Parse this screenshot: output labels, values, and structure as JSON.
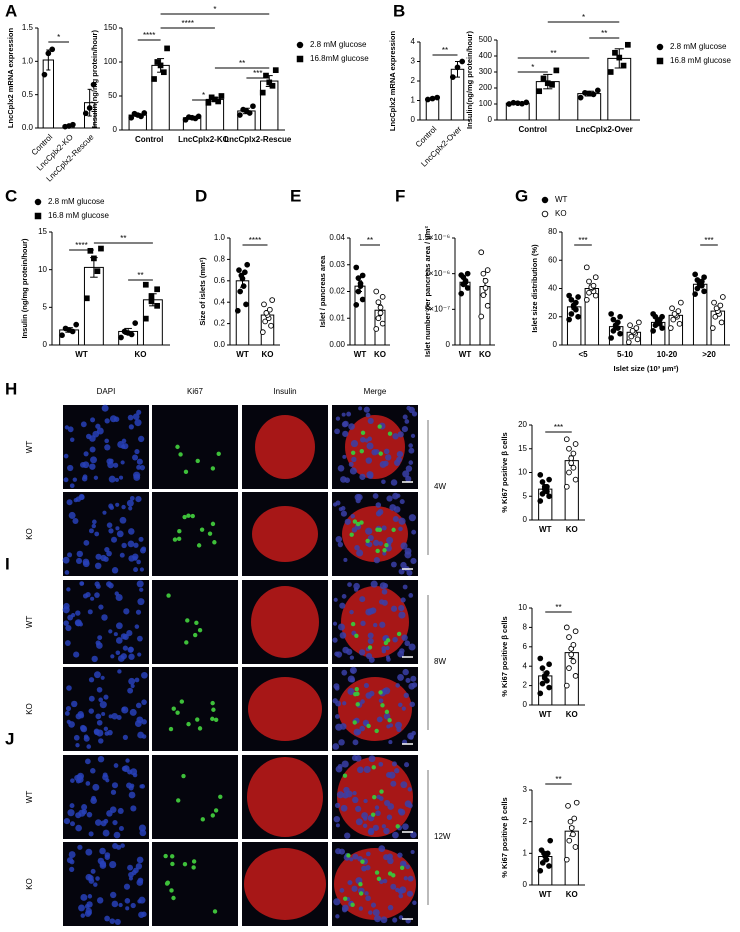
{
  "panel_letters": [
    "A",
    "B",
    "C",
    "D",
    "E",
    "F",
    "G"
  ],
  "chart_data": [
    {
      "type": "bar",
      "ylabel": "LncCplx2 mRNA expression",
      "categories": [
        "Control",
        "LncCplx2-KO",
        "LncCplx2-Rescue"
      ],
      "color": "#000000",
      "marker": "circle",
      "values": [
        1.02,
        0.03,
        0.38
      ],
      "errors": [
        0.15,
        0.02,
        0.2
      ],
      "points": [
        [
          0.8,
          1.12,
          1.18
        ],
        [
          0.02,
          0.03,
          0.05
        ],
        [
          0.22,
          0.3,
          0.65
        ]
      ],
      "ylim": [
        0,
        1.5
      ],
      "yticks": [
        {
          "value": 0,
          "label": "0.0"
        },
        0.5,
        {
          "value": 1,
          "label": "1.0"
        },
        1.5
      ],
      "annotations": [
        "*"
      ]
    },
    {
      "type": "bar",
      "ylabel": "Insulin(ng/mg protein/hour)",
      "categories": [
        "Control",
        "LncCplx2-KO",
        "LncCplx2-Rescue"
      ],
      "series": [
        {
          "name": "2.8 mM glucose",
          "color": "#000000",
          "marker": "circle",
          "values": [
            22,
            18,
            28
          ],
          "errors": [
            2,
            2,
            4
          ],
          "points": [
            [
              18,
              20,
              22,
              24,
              25
            ],
            [
              15,
              17,
              18,
              19,
              20
            ],
            [
              22,
              25,
              28,
              30,
              35
            ]
          ]
        },
        {
          "name": "16.8mM glucose",
          "color": "#000000",
          "marker": "square",
          "values": [
            95,
            45,
            72
          ],
          "errors": [
            10,
            3,
            8
          ],
          "points": [
            [
              75,
              85,
              95,
              100,
              120
            ],
            [
              40,
              42,
              45,
              48,
              50
            ],
            [
              55,
              65,
              70,
              80,
              88
            ]
          ]
        }
      ],
      "ylim": [
        0,
        150
      ],
      "yticks": [
        0,
        50,
        100,
        150
      ],
      "annotations": [
        "****",
        "*",
        "***",
        "****",
        "*",
        "**"
      ]
    },
    {
      "type": "bar",
      "ylabel": "LncCplx2 mRNA expression",
      "categories": [
        "Control",
        "LncCplx2-Over"
      ],
      "color": "#000000",
      "marker": "circle",
      "values": [
        1.1,
        2.6
      ],
      "errors": [
        0.05,
        0.4
      ],
      "points": [
        [
          1.05,
          1.1,
          1.15
        ],
        [
          2.2,
          2.7,
          3.0
        ]
      ],
      "ylim": [
        0,
        4
      ],
      "yticks": [
        0,
        1,
        2,
        3,
        4
      ],
      "annotations": [
        "**"
      ]
    },
    {
      "type": "bar",
      "ylabel": "Insulin(ng/mg protein/hour)",
      "categories": [
        "Control",
        "LncCplx2-Over"
      ],
      "series": [
        {
          "name": "2.8 mM glucose",
          "color": "#000000",
          "marker": "circle",
          "values": [
            105,
            165
          ],
          "errors": [
            5,
            15
          ],
          "points": [
            [
              100,
              102,
              105,
              108,
              110
            ],
            [
              140,
              160,
              165,
              170,
              185
            ]
          ]
        },
        {
          "name": "16.8 mM glucose",
          "color": "#000000",
          "marker": "square",
          "values": [
            240,
            385
          ],
          "errors": [
            45,
            60
          ],
          "points": [
            [
              180,
              220,
              230,
              260,
              310
            ],
            [
              300,
              340,
              390,
              420,
              470
            ]
          ]
        }
      ],
      "ylim": [
        0,
        500
      ],
      "yticks": [
        0,
        100,
        200,
        300,
        400,
        500
      ],
      "annotations": [
        "*",
        "**",
        "**",
        "*"
      ]
    },
    {
      "type": "bar",
      "ylabel": "Insulin (ng/mg protein/hour)",
      "categories": [
        "WT",
        "KO"
      ],
      "series": [
        {
          "name": "2.8 mM glucose",
          "color": "#000000",
          "marker": "circle",
          "values": [
            2.0,
            1.8
          ],
          "errors": [
            0.3,
            0.4
          ],
          "points": [
            [
              1.3,
              1.8,
              2.0,
              2.2,
              2.7
            ],
            [
              1.0,
              1.4,
              1.6,
              1.8,
              2.9
            ]
          ]
        },
        {
          "name": "16.8 mM glucose",
          "color": "#000000",
          "marker": "square",
          "values": [
            10.3,
            6.0
          ],
          "errors": [
            1.3,
            0.8
          ],
          "points": [
            [
              6.2,
              9.8,
              11.5,
              12.5,
              12.8
            ],
            [
              3.5,
              5.2,
              5.8,
              6.5,
              7.4,
              8.0
            ]
          ]
        }
      ],
      "ylim": [
        0,
        15
      ],
      "yticks": [
        0,
        5,
        10,
        15
      ],
      "annotations": [
        "****",
        "**",
        "**"
      ]
    },
    {
      "type": "bar",
      "ylabel": "Size of islets (mm²)",
      "categories": [
        "WT",
        "KO"
      ],
      "series": [
        {
          "color": "#000000",
          "marker": "circle",
          "values": [
            0.6,
            null
          ],
          "errors": [
            0.06,
            null
          ],
          "points": [
            [
              0.32,
              0.38,
              0.5,
              0.55,
              0.62,
              0.65,
              0.68,
              0.7,
              0.75
            ],
            []
          ]
        },
        {
          "color": "#000000",
          "marker": "open-circle",
          "values": [
            null,
            0.28
          ],
          "errors": [
            null,
            0.04
          ],
          "points": [
            [],
            [
              0.12,
              0.18,
              0.22,
              0.25,
              0.28,
              0.3,
              0.33,
              0.38,
              0.42
            ]
          ]
        }
      ],
      "ylim": [
        0,
        1
      ],
      "yticks": [
        {
          "value": 0,
          "label": "0.0"
        },
        0.2,
        0.4,
        0.6,
        0.8,
        {
          "value": 1,
          "label": "1.0"
        }
      ],
      "annotations": [
        "****"
      ]
    },
    {
      "type": "bar",
      "ylabel": "Islet / pancreas area",
      "categories": [
        "WT",
        "KO"
      ],
      "series": [
        {
          "color": "#000000",
          "marker": "circle",
          "values": [
            0.022,
            null
          ],
          "errors": [
            0.002,
            null
          ],
          "points": [
            [
              0.015,
              0.017,
              0.02,
              0.022,
              0.023,
              0.025,
              0.026,
              0.029
            ],
            []
          ]
        },
        {
          "color": "#000000",
          "marker": "open-circle",
          "values": [
            null,
            0.013
          ],
          "errors": [
            null,
            0.002
          ],
          "points": [
            [],
            [
              0.006,
              0.008,
              0.01,
              0.012,
              0.014,
              0.016,
              0.018,
              0.02
            ]
          ]
        }
      ],
      "ylim": [
        0,
        0.04
      ],
      "yticks": [
        {
          "value": 0,
          "label": "0.00"
        },
        0.01,
        0.02,
        0.03,
        0.04
      ],
      "annotations": [
        "**"
      ]
    },
    {
      "type": "bar",
      "ylabel": "Islet number per pancreas area / μm²",
      "categories": [
        "WT",
        "KO"
      ],
      "series": [
        {
          "color": "#000000",
          "marker": "circle",
          "values": [
            8.8e-07,
            null
          ],
          "errors": [
            4e-08,
            null
          ],
          "points": [
            [
              7.2e-07,
              8e-07,
              8.5e-07,
              8.8e-07,
              9e-07,
              9.5e-07,
              1e-06,
              9.8e-07
            ],
            []
          ]
        },
        {
          "color": "#000000",
          "marker": "open-circle",
          "values": [
            null,
            8.2e-07
          ],
          "errors": [
            null,
            1.1e-07
          ],
          "points": [
            [],
            [
              4e-07,
              5.5e-07,
              7e-07,
              8e-07,
              9e-07,
              1e-06,
              1.05e-06,
              1.3e-06
            ]
          ]
        }
      ],
      "ylim": [
        0,
        1.5e-06
      ],
      "yticks": [
        0,
        {
          "value": 5e-07,
          "label": "5×10⁻⁷"
        },
        {
          "value": 1e-06,
          "label": "1×10⁻⁶"
        },
        {
          "value": 1.5e-06,
          "label": "1.5×10⁻⁶"
        }
      ],
      "annotations": []
    },
    {
      "type": "bar",
      "ylabel": "Islet size distribution (%)",
      "xlabel": "Islet size (10³ μm²)",
      "categories": [
        "<5",
        "5-10",
        "10-20",
        ">20"
      ],
      "series": [
        {
          "name": "WT",
          "color": "#000000",
          "marker": "circle",
          "values": [
            27,
            13,
            16,
            43
          ],
          "errors": [
            2,
            2,
            1.5,
            1.5
          ],
          "points": [
            [
              18,
              20,
              22,
              25,
              27,
              28,
              30,
              32,
              34,
              35
            ],
            [
              5,
              8,
              10,
              12,
              13,
              14,
              16,
              18,
              20,
              22
            ],
            [
              10,
              12,
              14,
              15,
              16,
              17,
              18,
              20,
              20,
              22
            ],
            [
              36,
              38,
              40,
              42,
              43,
              44,
              45,
              46,
              48,
              50
            ]
          ]
        },
        {
          "name": "KO",
          "color": "#000000",
          "marker": "open-circle",
          "values": [
            40,
            9,
            21,
            24
          ],
          "errors": [
            2.5,
            1.5,
            2,
            2
          ],
          "points": [
            [
              32,
              35,
              37,
              38,
              40,
              41,
              42,
              45,
              48,
              55
            ],
            [
              2,
              4,
              6,
              8,
              9,
              10,
              12,
              14,
              16
            ],
            [
              12,
              15,
              18,
              20,
              21,
              22,
              24,
              26,
              30
            ],
            [
              12,
              16,
              20,
              22,
              24,
              26,
              28,
              30,
              34
            ]
          ]
        }
      ],
      "ylim": [
        0,
        80
      ],
      "yticks": [
        0,
        20,
        40,
        60,
        80
      ],
      "annotations": [
        "***",
        "***"
      ]
    },
    {
      "type": "bar",
      "ylabel": "% Ki67 positive β cells",
      "categories": [
        "WT",
        "KO"
      ],
      "series": [
        {
          "color": "#000000",
          "marker": "circle",
          "values": [
            6.5,
            null
          ],
          "errors": [
            0.6,
            null
          ],
          "points": [
            [
              4,
              5,
              5.5,
              6,
              6.5,
              7,
              7,
              8,
              8.5,
              9.5
            ],
            []
          ]
        },
        {
          "color": "#000000",
          "marker": "open-circle",
          "values": [
            null,
            12.5
          ],
          "errors": [
            null,
            1.0
          ],
          "points": [
            [],
            [
              7,
              8.5,
              10,
              11,
              12,
              13,
              14,
              15,
              16,
              17
            ]
          ]
        }
      ],
      "ylim": [
        0,
        20
      ],
      "yticks": [
        0,
        5,
        10,
        15,
        20
      ],
      "annotations": [
        "***"
      ]
    },
    {
      "type": "bar",
      "ylabel": "% Ki67 positive β cells",
      "categories": [
        "WT",
        "KO"
      ],
      "series": [
        {
          "color": "#000000",
          "marker": "circle",
          "values": [
            3.0,
            null
          ],
          "errors": [
            0.4,
            null
          ],
          "points": [
            [
              1.2,
              1.8,
              2.2,
              2.5,
              2.8,
              3,
              3.3,
              3.8,
              4.2,
              4.8
            ],
            []
          ]
        },
        {
          "color": "#000000",
          "marker": "open-circle",
          "values": [
            null,
            5.4
          ],
          "errors": [
            null,
            0.6
          ],
          "points": [
            [],
            [
              2,
              3,
              3.8,
              4.5,
              5.2,
              5.8,
              6.2,
              7,
              7.6,
              8
            ]
          ]
        }
      ],
      "ylim": [
        0,
        10
      ],
      "yticks": [
        0,
        2,
        4,
        6,
        8,
        10
      ],
      "annotations": [
        "**"
      ]
    },
    {
      "type": "bar",
      "ylabel": "% Ki67 positive β cells",
      "categories": [
        "WT",
        "KO"
      ],
      "series": [
        {
          "color": "#000000",
          "marker": "circle",
          "values": [
            0.9,
            null
          ],
          "errors": [
            0.1,
            null
          ],
          "points": [
            [
              0.45,
              0.6,
              0.7,
              0.8,
              0.9,
              1,
              1,
              1.1,
              1.4
            ],
            []
          ]
        },
        {
          "color": "#000000",
          "marker": "open-circle",
          "values": [
            null,
            1.7
          ],
          "errors": [
            null,
            0.15
          ],
          "points": [
            [],
            [
              0.8,
              1.2,
              1.4,
              1.6,
              1.8,
              2,
              2.1,
              2.5,
              2.6
            ]
          ]
        }
      ],
      "ylim": [
        0,
        3
      ],
      "yticks": [
        0,
        1,
        2,
        3
      ],
      "annotations": [
        "**"
      ]
    }
  ],
  "micrographs": {
    "channels": [
      "DAPI",
      "Ki67",
      "Insulin",
      "Merge"
    ],
    "panels": [
      {
        "letter": "H",
        "age": "4W",
        "genotypes": [
          "WT",
          "KO"
        ]
      },
      {
        "letter": "I",
        "age": "8W",
        "genotypes": [
          "WT",
          "KO"
        ]
      },
      {
        "letter": "J",
        "age": "12W",
        "genotypes": [
          "WT",
          "KO"
        ]
      }
    ]
  }
}
